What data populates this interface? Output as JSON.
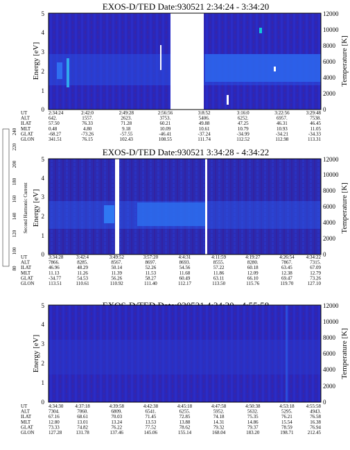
{
  "colorbar": {
    "label": "Second Harmonic Current",
    "ticks": [
      "80",
      "100",
      "120",
      "140",
      "160",
      "180",
      "200",
      "220",
      "240"
    ],
    "colors": [
      "#000000",
      "#3a0a6a",
      "#2a1a9a",
      "#1f3fd6",
      "#2a6cf0",
      "#20a8ea",
      "#10c8b0",
      "#20d060",
      "#b0e030",
      "#f0e020",
      "#f0a020",
      "#e03010"
    ]
  },
  "panels": [
    {
      "title": "EXOS-D/TED   Date:930521  2:34:24 - 3:34:20",
      "ylabel": "Energy [eV]",
      "y2label": "Temperature [K]",
      "yticks": [
        "0",
        "1",
        "2",
        "3",
        "4",
        "5"
      ],
      "y2ticks": [
        "0",
        "2000",
        "4000",
        "6000",
        "8000",
        "10000",
        "12000"
      ],
      "gaps": [
        [
          0.42,
          0.49
        ]
      ],
      "row_labels": [
        "UT",
        "ALT",
        "ILAT",
        "MLT",
        "GLAT",
        "GLON"
      ],
      "columns": [
        {
          "UT": "2:34:24",
          "ALT": "642.",
          "ILAT": "57.50",
          "MLT": "0.48",
          "GLAT": "-68.27",
          "GLON": "341.51"
        },
        {
          "UT": "2:42:0",
          "ALT": "1557.",
          "ILAT": "76.33",
          "MLT": "4.80",
          "GLAT": "-73.26",
          "GLON": "76.15"
        },
        {
          "UT": "2:49:28",
          "ALT": "2623.",
          "ILAT": "71.28",
          "MLT": "9.18",
          "GLAT": "-57.55",
          "GLON": "102.43"
        },
        {
          "UT": "2:56:56",
          "ALT": "3753.",
          "ILAT": "60.21",
          "MLT": "10.09",
          "GLAT": "-46.41",
          "GLON": "108.55"
        },
        {
          "UT": "3:8:52",
          "ALT": "5406.",
          "ILAT": "49.88",
          "MLT": "10.61",
          "GLAT": "-37.24",
          "GLON": "111.74"
        },
        {
          "UT": "3:16:0",
          "ALT": "6252.",
          "ILAT": "47.25",
          "MLT": "10.79",
          "GLAT": "-34.99",
          "GLON": "112.52"
        },
        {
          "UT": "3:22:56",
          "ALT": "6957.",
          "ILAT": "46.31",
          "MLT": "10.93",
          "GLAT": "-34.21",
          "GLON": "112.98"
        },
        {
          "UT": "3:29:48",
          "ALT": "7538.",
          "ILAT": "46.45",
          "MLT": "11.05",
          "GLAT": "-34.33",
          "GLON": "113.31"
        }
      ]
    },
    {
      "title": "EXOS-D/TED   Date:930521  3:34:28 - 4:34:22",
      "ylabel": "Energy [eV]",
      "y2label": "Temperature [K]",
      "yticks": [
        "0",
        "1",
        "2",
        "3",
        "4",
        "5"
      ],
      "y2ticks": [
        "0",
        "2000",
        "4000",
        "6000",
        "8000",
        "10000",
        "12000"
      ],
      "gaps": [
        [
          0.22,
          0.24
        ],
        [
          0.585,
          0.595
        ]
      ],
      "row_labels": [
        "UT",
        "ALT",
        "ILAT",
        "MLT",
        "GLAT",
        "GLON"
      ],
      "columns": [
        {
          "UT": "3:34:28",
          "ALT": "7866.",
          "ILAT": "46.96",
          "MLT": "11.13",
          "GLAT": "-34.77",
          "GLON": "113.51"
        },
        {
          "UT": "3:42:4",
          "ALT": "8285.",
          "ILAT": "48.29",
          "MLT": "11.26",
          "GLAT": "54.53",
          "GLON": "110.61"
        },
        {
          "UT": "3:49:52",
          "ALT": "8567.",
          "ILAT": "50.14",
          "MLT": "11.39",
          "GLAT": "56.26",
          "GLON": "110.92"
        },
        {
          "UT": "3:57:20",
          "ALT": "8697.",
          "ILAT": "52.26",
          "MLT": "11.53",
          "GLAT": "58.27",
          "GLON": "111.40"
        },
        {
          "UT": "4:4:31",
          "ALT": "8693.",
          "ILAT": "54.56",
          "MLT": "11.68",
          "GLAT": "60.49",
          "GLON": "112.17"
        },
        {
          "UT": "4:11:59",
          "ALT": "8555.",
          "ILAT": "57.22",
          "MLT": "11.86",
          "GLAT": "63.11",
          "GLON": "113.50"
        },
        {
          "UT": "4:19:27",
          "ALT": "8280.",
          "ILAT": "60.18",
          "MLT": "12.09",
          "GLAT": "66.10",
          "GLON": "115.76"
        },
        {
          "UT": "4:26:54",
          "ALT": "7867.",
          "ILAT": "63.45",
          "MLT": "12.38",
          "GLAT": "69.47",
          "GLON": "119.70"
        },
        {
          "UT": "4:34:22",
          "ALT": "7315.",
          "ILAT": "67.09",
          "MLT": "12.79",
          "GLAT": "73.26",
          "GLON": "127.10"
        }
      ]
    },
    {
      "title": "EXOS-D/TED   Date:930521  4:34:30 - 4:55:58",
      "ylabel": "Energy [eV]",
      "y2label": "Temperature [K]",
      "yticks": [
        "0",
        "1",
        "2",
        "3",
        "4",
        "5"
      ],
      "y2ticks": [
        "0",
        "2000",
        "4000",
        "6000",
        "8000",
        "10000",
        "12000"
      ],
      "gaps": [],
      "row_labels": [
        "UT",
        "ALT",
        "ILAT",
        "MLT",
        "GLAT",
        "GLON"
      ],
      "columns": [
        {
          "UT": "4:34:30",
          "ALT": "7304.",
          "ILAT": "67.16",
          "MLT": "12.80",
          "GLAT": "73.33",
          "GLON": "127.28"
        },
        {
          "UT": "4:37:18",
          "ALT": "7060.",
          "ILAT": "68.61",
          "MLT": "13.01",
          "GLAT": "74.82",
          "GLON": "131.78"
        },
        {
          "UT": "4:39:58",
          "ALT": "6809.",
          "ILAT": "70.03",
          "MLT": "13.24",
          "GLAT": "76.22",
          "GLON": "137.46"
        },
        {
          "UT": "4:42:38",
          "ALT": "6541.",
          "ILAT": "71.45",
          "MLT": "13.53",
          "GLAT": "77.52",
          "GLON": "145.06"
        },
        {
          "UT": "4:45:18",
          "ALT": "6255.",
          "ILAT": "72.85",
          "MLT": "13.88",
          "GLAT": "78.62",
          "GLON": "155.14"
        },
        {
          "UT": "4:47:58",
          "ALT": "5952.",
          "ILAT": "74.18",
          "MLT": "14.31",
          "GLAT": "79.32",
          "GLON": "168.04"
        },
        {
          "UT": "4:50:38",
          "ALT": "5632.",
          "ILAT": "75.35",
          "MLT": "14.86",
          "GLAT": "79.37",
          "GLON": "183.20"
        },
        {
          "UT": "4:53:18",
          "ALT": "5295.",
          "ILAT": "76.21",
          "MLT": "15.54",
          "GLAT": "78.59",
          "GLON": "198.71"
        },
        {
          "UT": "4:55:58",
          "ALT": "4943.",
          "ILAT": "76.58",
          "MLT": "16.38",
          "GLAT": "76.94",
          "GLON": "212.45"
        }
      ]
    }
  ],
  "chart_data": [
    {
      "type": "heatmap",
      "title": "EXOS-D/TED   Date:930521  2:34:24 - 3:34:20",
      "ylabel": "Energy [eV]",
      "y2label": "Temperature [K]",
      "ylim": [
        0,
        5
      ],
      "y2lim": [
        0,
        12000
      ],
      "x_tick_labels": [
        "2:34:24",
        "2:42:0",
        "2:49:28",
        "2:56:56",
        "3:8:52",
        "3:16:0",
        "3:22:56",
        "3:29:48"
      ],
      "colorbar_label": "Second Harmonic Current",
      "colorbar_range": [
        80,
        240
      ]
    },
    {
      "type": "heatmap",
      "title": "EXOS-D/TED   Date:930521  3:34:28 - 4:34:22",
      "ylabel": "Energy [eV]",
      "y2label": "Temperature [K]",
      "ylim": [
        0,
        5
      ],
      "y2lim": [
        0,
        12000
      ],
      "x_tick_labels": [
        "3:34:28",
        "3:42:4",
        "3:49:52",
        "3:57:20",
        "4:4:31",
        "4:11:59",
        "4:19:27",
        "4:26:54",
        "4:34:22"
      ],
      "colorbar_label": "Second Harmonic Current",
      "colorbar_range": [
        80,
        240
      ]
    },
    {
      "type": "heatmap",
      "title": "EXOS-D/TED   Date:930521  4:34:30 - 4:55:58",
      "ylabel": "Energy [eV]",
      "y2label": "Temperature [K]",
      "ylim": [
        0,
        5
      ],
      "y2lim": [
        0,
        12000
      ],
      "x_tick_labels": [
        "4:34:30",
        "4:37:18",
        "4:39:58",
        "4:42:38",
        "4:45:18",
        "4:47:58",
        "4:50:38",
        "4:53:18",
        "4:55:58"
      ],
      "colorbar_label": "Second Harmonic Current",
      "colorbar_range": [
        80,
        240
      ]
    }
  ]
}
